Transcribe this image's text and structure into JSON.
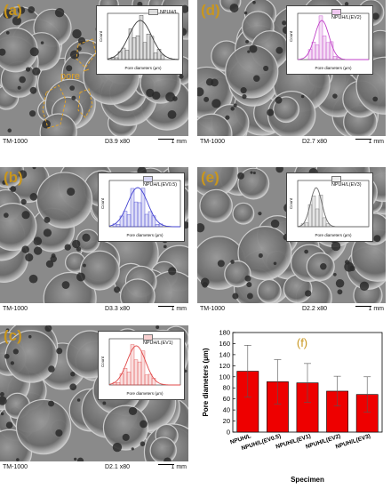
{
  "panels": {
    "a": {
      "letter": "(a)",
      "instrument": "TM-1000",
      "mag": "D3.9    x80",
      "scale": "1 mm",
      "legend": "NPUH/L",
      "color": "#3a3a3a",
      "xlabel": "Pore diameters (µm)",
      "ylabel": "Count",
      "pore_label": "pore"
    },
    "d": {
      "letter": "(d)",
      "instrument": "TM-1000",
      "mag": "D2.7    x80",
      "scale": "1 mm",
      "legend": "NPUH/L(EV2)",
      "color": "#c040c8",
      "xlabel": "Pore diameters (µm)",
      "ylabel": "Count"
    },
    "b": {
      "letter": "(b)",
      "instrument": "TM-1000",
      "mag": "D3.3    x80",
      "scale": "1 mm",
      "legend": "NPUH/L(EV0.5)",
      "color": "#4040d0",
      "xlabel": "Pore diameters (µm)",
      "ylabel": "Count"
    },
    "e": {
      "letter": "(e)",
      "instrument": "TM-1000",
      "mag": "D2.2    x80",
      "scale": "1 mm",
      "legend": "NPUH/L(EV3)",
      "color": "#6a6a6a",
      "xlabel": "Pore diameters (µm)",
      "ylabel": "Count"
    },
    "c": {
      "letter": "(c)",
      "instrument": "TM-1000",
      "mag": "D2.1    x80",
      "scale": "1 mm",
      "legend": "NPUH/L(EV1)",
      "color": "#e04848",
      "xlabel": "Pore diameters (µm)",
      "ylabel": "Count"
    }
  },
  "chart_data": {
    "type": "bar",
    "letter": "(f)",
    "categories": [
      "NPUH/L",
      "NPUH/L(EV0.5)",
      "NPUH/L(EV1)",
      "NPUH/L(EV2)",
      "NPUH/L(EV3)"
    ],
    "values": [
      110,
      91,
      89,
      74,
      68
    ],
    "errors": [
      47,
      40,
      35,
      27,
      32
    ],
    "xlabel": "Specimen",
    "ylabel": "Pore diameters (µm)",
    "ylim": [
      0,
      180
    ],
    "yticks": [
      0,
      20,
      40,
      60,
      80,
      100,
      120,
      140,
      160,
      180
    ],
    "bar_color": "#ee0000",
    "grid": false
  }
}
